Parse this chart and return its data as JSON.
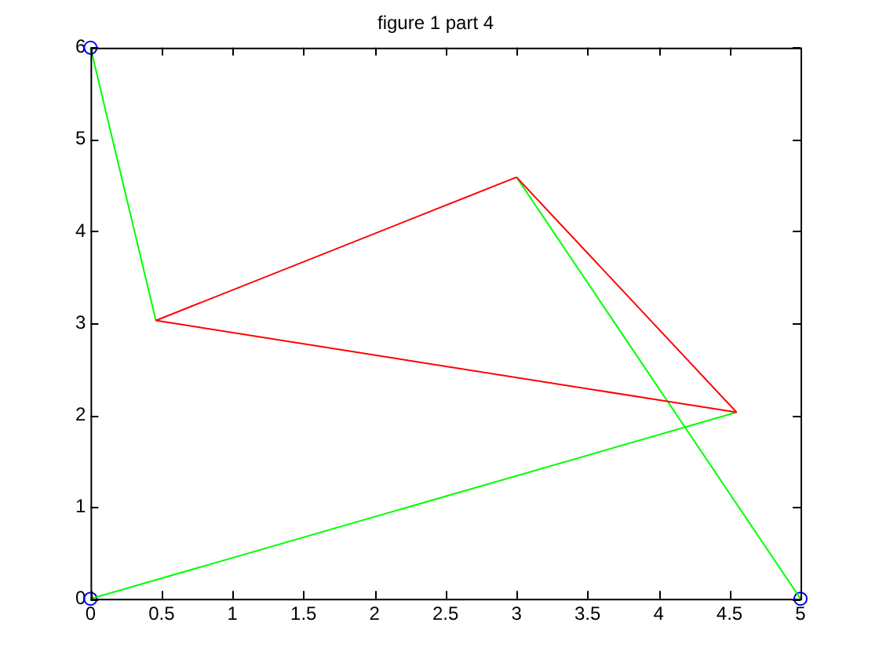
{
  "chart_data": {
    "type": "line",
    "title": "figure 1 part 4",
    "xlim": [
      0,
      5
    ],
    "xticks": [
      0,
      0.5,
      1,
      1.5,
      2,
      2.5,
      3,
      3.5,
      4,
      4.5,
      5
    ],
    "ylim": [
      0,
      6
    ],
    "yticks": [
      0,
      1,
      2,
      3,
      4,
      5,
      6
    ],
    "grid": false,
    "legend": false,
    "marker": "none",
    "series": [
      {
        "color": "#ff0000",
        "x": [
          0.46,
          3.0
        ],
        "values": [
          3.03,
          4.59
        ]
      },
      {
        "color": "#ff0000",
        "x": [
          3.0,
          4.55
        ],
        "values": [
          4.59,
          2.03
        ]
      },
      {
        "color": "#ff0000",
        "x": [
          0.46,
          4.55
        ],
        "values": [
          3.03,
          2.03
        ]
      },
      {
        "color": "#00ff00",
        "x": [
          0,
          0.46
        ],
        "values": [
          6,
          3.03
        ]
      },
      {
        "color": "#00ff00",
        "x": [
          0,
          4.55
        ],
        "values": [
          0,
          2.03
        ]
      },
      {
        "color": "#00ff00",
        "x": [
          3.0,
          5
        ],
        "values": [
          4.59,
          0
        ]
      },
      {
        "type": "scatter",
        "color": "#0000ff",
        "x": [
          0,
          0,
          5
        ],
        "values": [
          6,
          0,
          0
        ],
        "marker": "circle"
      }
    ]
  }
}
